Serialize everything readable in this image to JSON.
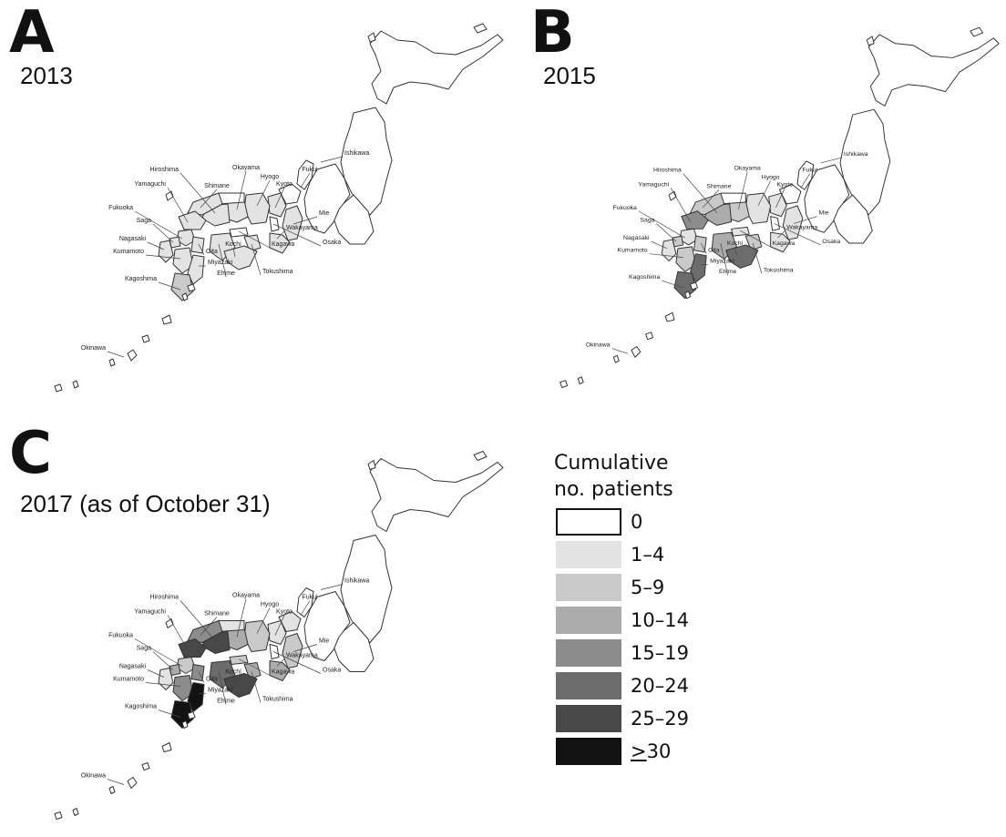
{
  "panels": [
    {
      "letter": "A",
      "year": "2013",
      "labels": {
        "ishikawa": "Ishikawa",
        "fukui": "Fukui",
        "kyoto": "Kyoto",
        "hyogo": "Hyogo",
        "okayama": "Okayama",
        "hiroshima": "Hiroshima",
        "shimane": "Shimane",
        "yamaguchi": "Yamaguchi",
        "fukuoka": "Fukuoka",
        "saga": "Saga",
        "nagasaki": "Nagasaki",
        "kumamoto": "Kumamoto",
        "kagoshima": "Kagoshima",
        "oita": "Oita",
        "miyazaki": "Miyazaki",
        "kochi": "Kochi",
        "ehime": "Ehime",
        "tokushima": "Tokushima",
        "kagawa": "Kagawa",
        "wakayama": "Wakayama",
        "mie": "Mie",
        "osaka": "Osaka",
        "okinawa": "Okinawa"
      },
      "shades": {
        "hokkaido": 0,
        "tohoku": 0,
        "kanto": 0,
        "chubu": 0,
        "ishikawa": 0,
        "fukui": 0,
        "kyoto": 1,
        "hyogo": 1,
        "osaka": 0,
        "mie": 1,
        "wakayama": 1,
        "okayama": 1,
        "hiroshima": 1,
        "tottori": 0,
        "shimane": 1,
        "yamaguchi": 1,
        "kagawa": 0,
        "ehime": 1,
        "tokushima": 1,
        "kochi": 1,
        "fukuoka": 1,
        "saga": 1,
        "nagasaki": 1,
        "kumamoto": 1,
        "oita": 1,
        "miyazaki": 1,
        "kagoshima": 2,
        "okinawa": 0
      }
    },
    {
      "letter": "B",
      "year": "2015",
      "labels": {
        "ishikawa": "Ishikawa",
        "fukui": "Fukui",
        "kyoto": "Kyoto",
        "hyogo": "Hyogo",
        "okayama": "Okayama",
        "hiroshima": "Hiroshima",
        "shimane": "Shimane",
        "yamaguchi": "Yamaguchi",
        "fukuoka": "Fukuoka",
        "saga": "Saga",
        "nagasaki": "Nagasaki",
        "kumamoto": "Kumamoto",
        "kagoshima": "Kagoshima",
        "oita": "Oita",
        "miyazaki": "Miyazaki",
        "kochi": "Kochi",
        "ehime": "Ehime",
        "tokushima": "Tokushima",
        "kagawa": "Kagawa",
        "wakayama": "Wakayama",
        "mie": "Mie",
        "osaka": "Osaka",
        "okinawa": "Okinawa"
      },
      "shades": {
        "hokkaido": 0,
        "tohoku": 0,
        "kanto": 0,
        "chubu": 0,
        "ishikawa": 0,
        "fukui": 0,
        "kyoto": 1,
        "hyogo": 1,
        "osaka": 0,
        "mie": 1,
        "wakayama": 1,
        "okayama": 2,
        "hiroshima": 3,
        "tottori": 0,
        "shimane": 2,
        "yamaguchi": 4,
        "kagawa": 1,
        "ehime": 3,
        "tokushima": 2,
        "kochi": 5,
        "fukuoka": 1,
        "saga": 2,
        "nagasaki": 1,
        "kumamoto": 2,
        "oita": 2,
        "miyazaki": 5,
        "kagoshima": 5,
        "okinawa": 0
      }
    },
    {
      "letter": "C",
      "year": "2017 (as of October 31)",
      "labels": {
        "ishikawa": "Ishikawa",
        "fukui": "Fukui",
        "kyoto": "Kyoto",
        "hyogo": "Hyogo",
        "okayama": "Okayama",
        "hiroshima": "Hiroshima",
        "shimane": "Shimane",
        "yamaguchi": "Yamaguchi",
        "fukuoka": "Fukuoka",
        "saga": "Saga",
        "nagasaki": "Nagasaki",
        "kumamoto": "Kumamoto",
        "kagoshima": "Kagoshima",
        "oita": "Oita",
        "miyazaki": "Miyazaki",
        "kochi": "Kochi",
        "ehime": "Ehime",
        "tokushima": "Tokushima",
        "kagawa": "Kagawa",
        "wakayama": "Wakayama",
        "mie": "Mie",
        "osaka": "Osaka",
        "okinawa": "Okinawa"
      },
      "shades": {
        "hokkaido": 0,
        "tohoku": 0,
        "kanto": 0,
        "chubu": 0,
        "ishikawa": 0,
        "fukui": 1,
        "kyoto": 1,
        "hyogo": 2,
        "osaka": 0,
        "mie": 2,
        "wakayama": 3,
        "okayama": 3,
        "hiroshima": 6,
        "tottori": 1,
        "shimane": 4,
        "yamaguchi": 6,
        "kagawa": 2,
        "ehime": 5,
        "tokushima": 3,
        "kochi": 6,
        "fukuoka": 2,
        "saga": 3,
        "nagasaki": 1,
        "kumamoto": 4,
        "oita": 4,
        "miyazaki": 7,
        "kagoshima": 7,
        "okinawa": 0
      }
    }
  ],
  "legend": {
    "title_line1": "Cumulative",
    "title_line2": "no. patients",
    "items": [
      {
        "label": "0",
        "color": "#ffffff"
      },
      {
        "label": "1–4",
        "color": "#e3e3e3"
      },
      {
        "label": "5–9",
        "color": "#c9c9c9"
      },
      {
        "label": "10–14",
        "color": "#acacac"
      },
      {
        "label": "15–19",
        "color": "#8c8c8c"
      },
      {
        "label": "20–24",
        "color": "#6c6c6c"
      },
      {
        "label": "25–29",
        "color": "#484848"
      },
      {
        "label": ">30",
        "color": "#121212"
      }
    ]
  }
}
